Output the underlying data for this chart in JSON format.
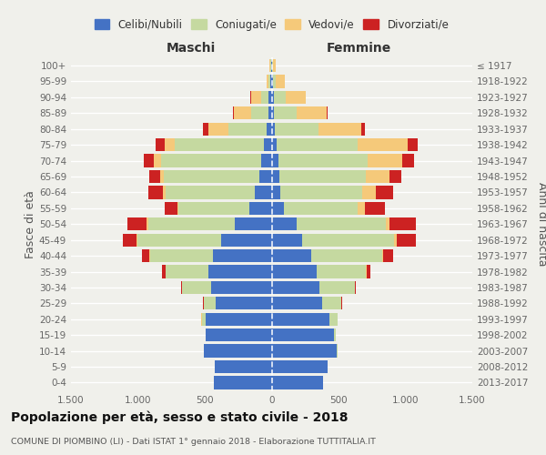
{
  "age_groups": [
    "0-4",
    "5-9",
    "10-14",
    "15-19",
    "20-24",
    "25-29",
    "30-34",
    "35-39",
    "40-44",
    "45-49",
    "50-54",
    "55-59",
    "60-64",
    "65-69",
    "70-74",
    "75-79",
    "80-84",
    "85-89",
    "90-94",
    "95-99",
    "100+"
  ],
  "birth_years": [
    "2013-2017",
    "2008-2012",
    "2003-2007",
    "1998-2002",
    "1993-1997",
    "1988-1992",
    "1983-1987",
    "1978-1982",
    "1973-1977",
    "1968-1972",
    "1963-1967",
    "1958-1962",
    "1953-1957",
    "1948-1952",
    "1943-1947",
    "1938-1942",
    "1933-1937",
    "1928-1932",
    "1923-1927",
    "1918-1922",
    "≤ 1917"
  ],
  "colors": {
    "celibe": "#4472c4",
    "coniugato": "#c5d9a0",
    "vedovo": "#f5c97a",
    "divorziato": "#cc2222"
  },
  "maschi": {
    "celibe": [
      430,
      425,
      505,
      490,
      495,
      415,
      455,
      475,
      440,
      375,
      275,
      165,
      125,
      95,
      75,
      55,
      35,
      25,
      25,
      10,
      5
    ],
    "coniugato": [
      0,
      0,
      5,
      5,
      25,
      95,
      215,
      315,
      470,
      630,
      650,
      530,
      670,
      710,
      750,
      670,
      290,
      130,
      55,
      15,
      5
    ],
    "vedovo": [
      0,
      0,
      0,
      0,
      5,
      0,
      0,
      0,
      5,
      5,
      8,
      8,
      15,
      25,
      55,
      75,
      145,
      125,
      75,
      15,
      5
    ],
    "divorziato": [
      0,
      0,
      0,
      0,
      5,
      5,
      8,
      28,
      55,
      105,
      145,
      95,
      115,
      85,
      75,
      65,
      45,
      8,
      5,
      0,
      0
    ]
  },
  "femmine": {
    "nubile": [
      385,
      415,
      485,
      465,
      435,
      375,
      355,
      335,
      295,
      225,
      185,
      95,
      65,
      55,
      48,
      35,
      22,
      18,
      18,
      8,
      5
    ],
    "coniugata": [
      0,
      0,
      8,
      12,
      55,
      145,
      265,
      370,
      530,
      690,
      670,
      550,
      610,
      650,
      670,
      610,
      330,
      170,
      90,
      25,
      5
    ],
    "vedova": [
      0,
      0,
      0,
      0,
      0,
      0,
      0,
      5,
      8,
      18,
      28,
      55,
      105,
      175,
      255,
      375,
      315,
      225,
      145,
      65,
      18
    ],
    "divorziata": [
      0,
      0,
      0,
      0,
      5,
      5,
      12,
      28,
      75,
      145,
      195,
      145,
      125,
      88,
      95,
      75,
      28,
      8,
      5,
      0,
      0
    ]
  },
  "xlim": 1500,
  "xtick_labels": [
    "1.500",
    "1.000",
    "500",
    "0",
    "500",
    "1.000",
    "1.500"
  ],
  "title": "Popolazione per età, sesso e stato civile - 2018",
  "subtitle": "COMUNE DI PIOMBINO (LI) - Dati ISTAT 1° gennaio 2018 - Elaborazione TUTTITALIA.IT",
  "ylabel_left": "Fasce di età",
  "ylabel_right": "Anni di nascita",
  "label_maschi": "Maschi",
  "label_femmine": "Femmine",
  "legend_labels": [
    "Celibi/Nubili",
    "Coniugati/e",
    "Vedovi/e",
    "Divorziati/e"
  ],
  "bg_color": "#f0f0eb",
  "bar_height": 0.82
}
